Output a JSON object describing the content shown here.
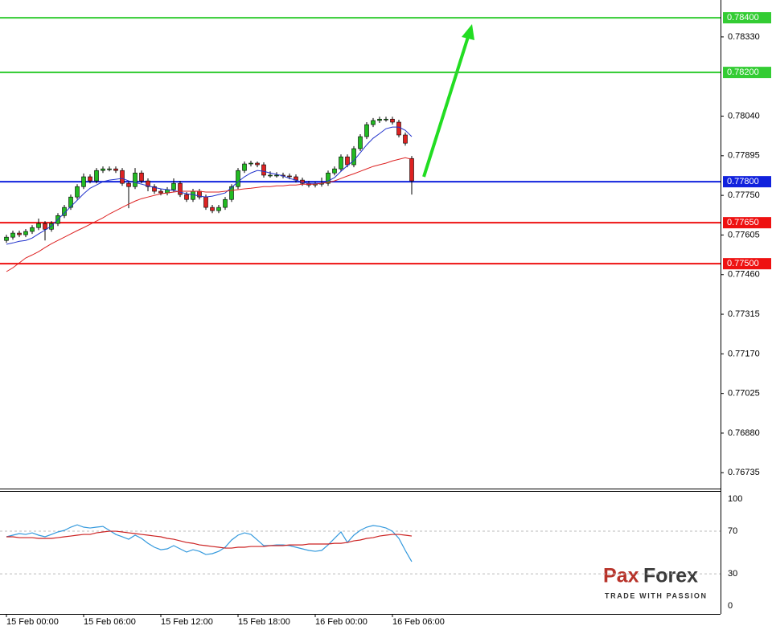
{
  "chart_data": [
    {
      "type": "candlestick",
      "categories": [
        "15 Feb 00:00",
        null,
        null,
        null,
        null,
        null,
        null,
        null,
        null,
        null,
        null,
        null,
        "15 Feb 06:00",
        null,
        null,
        null,
        null,
        null,
        null,
        null,
        null,
        null,
        null,
        null,
        "15 Feb 12:00",
        null,
        null,
        null,
        null,
        null,
        null,
        null,
        null,
        null,
        null,
        null,
        "15 Feb 18:00",
        null,
        null,
        null,
        null,
        null,
        null,
        null,
        null,
        null,
        null,
        null,
        "16 Feb 00:00",
        null,
        null,
        null,
        null,
        null,
        null,
        null,
        null,
        null,
        null,
        null,
        "16 Feb 06:00",
        null,
        null,
        null
      ],
      "open": [
        0.77585,
        0.77597,
        0.77612,
        0.77606,
        0.77618,
        0.77632,
        0.77647,
        0.77626,
        0.77647,
        0.77676,
        0.77706,
        0.77744,
        0.77782,
        0.77818,
        0.77803,
        0.77841,
        0.77847,
        0.77847,
        0.77841,
        0.77794,
        0.77782,
        0.77832,
        0.77803,
        0.77782,
        0.77765,
        0.77759,
        0.77771,
        0.77794,
        0.77753,
        0.77735,
        0.77765,
        0.77744,
        0.77706,
        0.77694,
        0.77706,
        0.77735,
        0.77782,
        0.77841,
        0.77865,
        0.77868,
        0.77862,
        0.77824,
        0.77824,
        0.77824,
        0.77821,
        0.77818,
        0.77806,
        0.77794,
        0.77788,
        0.77791,
        0.77794,
        0.77832,
        0.77847,
        0.77891,
        0.77862,
        0.77921,
        0.77965,
        0.78009,
        0.78024,
        0.78029,
        0.78029,
        0.78018,
        0.77971,
        0.77885
      ],
      "high": [
        0.77606,
        0.77621,
        0.77621,
        0.77627,
        0.77641,
        0.77665,
        0.77656,
        0.77656,
        0.77685,
        0.77715,
        0.77753,
        0.77791,
        0.7783,
        0.77827,
        0.7785,
        0.77856,
        0.77856,
        0.77856,
        0.7785,
        0.77803,
        0.7785,
        0.77841,
        0.77812,
        0.77791,
        0.77774,
        0.7778,
        0.77812,
        0.77803,
        0.77762,
        0.77774,
        0.77774,
        0.77753,
        0.77715,
        0.77715,
        0.77744,
        0.77791,
        0.7785,
        0.77874,
        0.77877,
        0.77874,
        0.77871,
        0.77838,
        0.77835,
        0.77833,
        0.7783,
        0.77827,
        0.77815,
        0.77803,
        0.778,
        0.77815,
        0.77841,
        0.77856,
        0.779,
        0.779,
        0.7793,
        0.77974,
        0.78018,
        0.78033,
        0.78038,
        0.78038,
        0.78038,
        0.78027,
        0.7798,
        0.77894
      ],
      "low": [
        0.77576,
        0.77588,
        0.77597,
        0.77597,
        0.77609,
        0.77623,
        0.77585,
        0.77617,
        0.77638,
        0.77667,
        0.77697,
        0.77735,
        0.77773,
        0.77794,
        0.77794,
        0.77832,
        0.77838,
        0.77832,
        0.77785,
        0.77703,
        0.77773,
        0.77794,
        0.77765,
        0.77756,
        0.7775,
        0.7775,
        0.77762,
        0.77744,
        0.77726,
        0.77726,
        0.77735,
        0.77697,
        0.77685,
        0.77685,
        0.77697,
        0.77726,
        0.77773,
        0.77832,
        0.77856,
        0.77853,
        0.77815,
        0.77815,
        0.77815,
        0.77812,
        0.77809,
        0.77797,
        0.77785,
        0.77779,
        0.77779,
        0.77782,
        0.77785,
        0.77823,
        0.77838,
        0.77853,
        0.77853,
        0.77912,
        0.77956,
        0.78,
        0.78015,
        0.7802,
        0.78009,
        0.77962,
        0.77932,
        0.77753
      ],
      "close": [
        0.77597,
        0.77612,
        0.77606,
        0.77618,
        0.77632,
        0.77647,
        0.77626,
        0.77647,
        0.77676,
        0.77706,
        0.77744,
        0.77782,
        0.77818,
        0.77803,
        0.77841,
        0.77847,
        0.77847,
        0.77841,
        0.77794,
        0.77782,
        0.77832,
        0.77803,
        0.77782,
        0.77765,
        0.77759,
        0.77771,
        0.77794,
        0.77753,
        0.77735,
        0.77765,
        0.77744,
        0.77706,
        0.77694,
        0.77706,
        0.77735,
        0.77782,
        0.77841,
        0.77865,
        0.77868,
        0.77862,
        0.77824,
        0.77824,
        0.77824,
        0.77821,
        0.77818,
        0.77806,
        0.77794,
        0.77788,
        0.77791,
        0.77794,
        0.77832,
        0.77847,
        0.77891,
        0.77862,
        0.77921,
        0.77965,
        0.78009,
        0.78024,
        0.78029,
        0.78029,
        0.78018,
        0.77971,
        0.77941,
        0.77803
      ],
      "up_color": "#22bb22",
      "down_color": "#dd2222",
      "series": [
        {
          "color": "#2233cc",
          "values": [
            0.77571,
            0.77576,
            0.77582,
            0.77585,
            0.77594,
            0.77609,
            0.77623,
            0.77638,
            0.77662,
            0.77685,
            0.77709,
            0.77732,
            0.77756,
            0.77776,
            0.77788,
            0.778,
            0.77806,
            0.77809,
            0.77812,
            0.77803,
            0.77797,
            0.77791,
            0.77785,
            0.77779,
            0.77774,
            0.77771,
            0.77768,
            0.77762,
            0.77756,
            0.77753,
            0.77747,
            0.77744,
            0.77747,
            0.77753,
            0.77759,
            0.77779,
            0.778,
            0.77818,
            0.77832,
            0.77841,
            0.77838,
            0.77832,
            0.77827,
            0.77821,
            0.77812,
            0.77806,
            0.77797,
            0.77794,
            0.77794,
            0.77794,
            0.77803,
            0.77815,
            0.77838,
            0.77859,
            0.77877,
            0.77906,
            0.77935,
            0.77959,
            0.77976,
            0.77994,
            0.78,
            0.78,
            0.77988,
            0.77965
          ]
        },
        {
          "color": "#dd2222",
          "values": [
            0.77471,
            0.77485,
            0.77503,
            0.77521,
            0.77532,
            0.77544,
            0.77559,
            0.77573,
            0.77585,
            0.77597,
            0.77609,
            0.77621,
            0.77632,
            0.77644,
            0.77656,
            0.77668,
            0.77682,
            0.77694,
            0.77706,
            0.77718,
            0.77729,
            0.77738,
            0.77744,
            0.7775,
            0.77756,
            0.77759,
            0.77762,
            0.77765,
            0.77765,
            0.77765,
            0.77765,
            0.77762,
            0.77762,
            0.77762,
            0.77765,
            0.77768,
            0.77771,
            0.77774,
            0.77776,
            0.77779,
            0.77782,
            0.77782,
            0.77785,
            0.77785,
            0.77788,
            0.77788,
            0.77791,
            0.77791,
            0.77791,
            0.77794,
            0.77797,
            0.77803,
            0.77812,
            0.77821,
            0.77829,
            0.77838,
            0.77847,
            0.77856,
            0.77862,
            0.77868,
            0.77876,
            0.77882,
            0.77888,
            0.77882
          ]
        }
      ],
      "ylim": [
        0.76677,
        0.78465
      ],
      "yticks": [
        {
          "value": 0.7833,
          "label": "0.78330"
        },
        {
          "value": 0.7804,
          "label": "0.78040"
        },
        {
          "value": 0.77895,
          "label": "0.77895"
        },
        {
          "value": 0.7775,
          "label": "0.77750"
        },
        {
          "value": 0.77605,
          "label": "0.77605"
        },
        {
          "value": 0.7746,
          "label": "0.77460"
        },
        {
          "value": 0.77315,
          "label": "0.77315"
        },
        {
          "value": 0.7717,
          "label": "0.77170"
        },
        {
          "value": 0.77025,
          "label": "0.77025"
        },
        {
          "value": 0.7688,
          "label": "0.76880"
        },
        {
          "value": 0.76735,
          "label": "0.76735"
        }
      ],
      "levels": [
        {
          "value": 0.784,
          "label": "0.78400",
          "color": "#33cc33"
        },
        {
          "value": 0.782,
          "label": "0.78200",
          "color": "#33cc33"
        },
        {
          "value": 0.778,
          "label": "0.77800",
          "color": "#1122dd"
        },
        {
          "value": 0.7765,
          "label": "0.77650",
          "color": "#ee1111"
        },
        {
          "value": 0.775,
          "label": "0.77500",
          "color": "#ee1111"
        }
      ]
    },
    {
      "type": "line",
      "series": [
        {
          "color": "#3399dd",
          "values": [
            64.7,
            66.2,
            67.7,
            66.9,
            68.4,
            66.2,
            64.7,
            66.9,
            69.2,
            70.7,
            73.7,
            75.9,
            73.7,
            72.9,
            73.7,
            74.4,
            70.7,
            66.9,
            64.7,
            62.4,
            66.2,
            63.2,
            58.6,
            54.9,
            52.6,
            53.4,
            56.4,
            53.4,
            50.4,
            52.6,
            51.1,
            48.1,
            48.9,
            51.1,
            54.9,
            61.7,
            66.2,
            68.4,
            66.9,
            61.7,
            56.4,
            56.4,
            57.1,
            57.1,
            56.4,
            54.9,
            53.4,
            51.9,
            51.1,
            51.9,
            57.1,
            63.2,
            69.2,
            59.4,
            66.2,
            70.7,
            73.7,
            75.2,
            74.4,
            72.9,
            69.9,
            63.2,
            51.9,
            41.4
          ]
        },
        {
          "color": "#cc2222",
          "values": [
            64.7,
            64.7,
            63.9,
            63.9,
            63.9,
            63.2,
            63.2,
            63.2,
            63.9,
            64.7,
            65.4,
            66.2,
            66.9,
            66.9,
            68.4,
            69.2,
            69.9,
            69.9,
            69.2,
            68.4,
            67.7,
            66.9,
            66.2,
            65.4,
            64.7,
            63.2,
            62.4,
            60.9,
            59.4,
            58.6,
            57.1,
            56.4,
            55.6,
            54.9,
            54.1,
            54.1,
            54.9,
            54.9,
            55.6,
            55.6,
            55.6,
            56.4,
            56.4,
            56.4,
            57.1,
            57.1,
            57.1,
            57.9,
            57.9,
            57.9,
            57.9,
            58.6,
            58.6,
            59.4,
            60.9,
            61.7,
            63.2,
            63.9,
            65.4,
            66.2,
            66.9,
            66.9,
            66.2,
            65.4
          ]
        }
      ],
      "ylim": [
        -7.5,
        106.8
      ],
      "yticks": [
        0,
        30,
        70,
        100
      ],
      "hlines": [
        30,
        70
      ]
    }
  ],
  "logo": {
    "brand": [
      "Pax",
      "Forex"
    ],
    "tagline": "TRADE WITH PASSION"
  }
}
